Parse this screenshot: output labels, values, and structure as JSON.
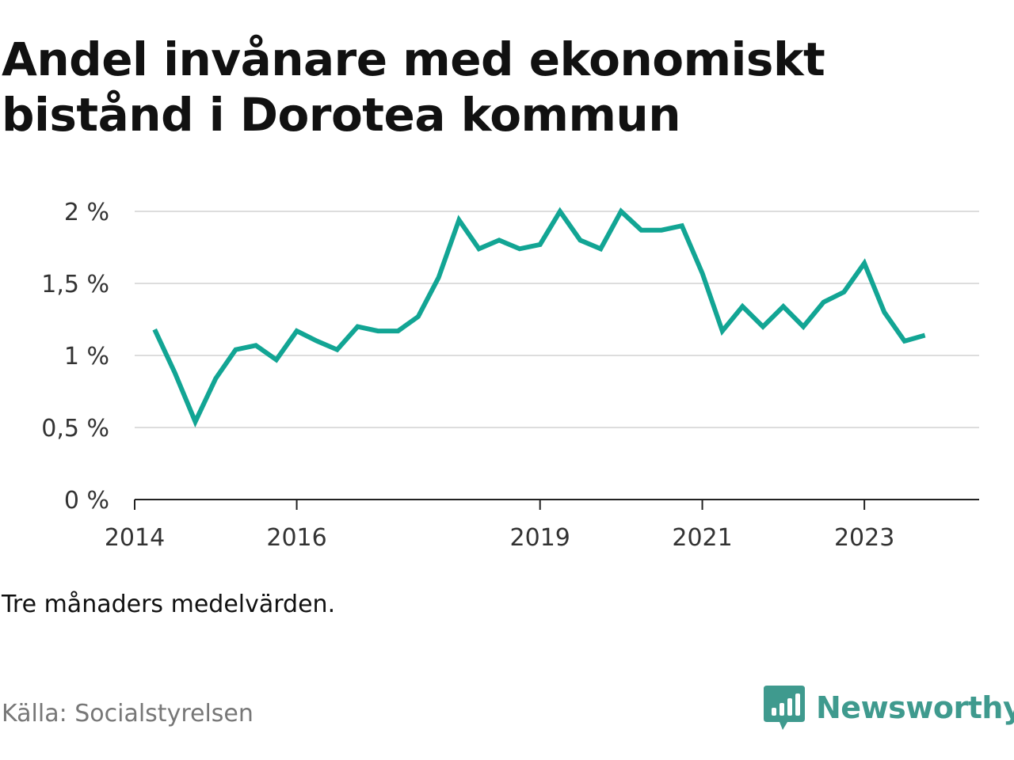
{
  "title": "Andel invånare med ekonomiskt bistånd i Dorotea kommun",
  "note": "Tre månaders medelvärden.",
  "source": "Källa: Socialstyrelsen",
  "brand": {
    "name": "Newsworthy",
    "color": "#3f9a8e"
  },
  "colors": {
    "line": "#12a594",
    "grid": "#dddddd",
    "axis": "#222222",
    "text": "#333333"
  },
  "chart_data": {
    "type": "line",
    "title": "Andel invånare med ekonomiskt bistånd i Dorotea kommun",
    "xlabel": "",
    "ylabel": "",
    "ylim": [
      0,
      2
    ],
    "xlim": [
      "2014-01-01",
      "2024-06-01"
    ],
    "grid": true,
    "y_ticks": [
      0,
      0.5,
      1,
      1.5,
      2
    ],
    "y_tick_labels": [
      "0 %",
      "0,5 %",
      "1 %",
      "1,5 %",
      "2 %"
    ],
    "x_ticks": [
      "2014-01-01",
      "2016-01-01",
      "2019-01-01",
      "2021-01-01",
      "2023-01-01"
    ],
    "x_tick_labels": [
      "2014",
      "2016",
      "2019",
      "2021",
      "2023"
    ],
    "series": [
      {
        "x": [
          "2014-04-01",
          "2014-07-01",
          "2014-10-01",
          "2015-01-01",
          "2015-04-01",
          "2015-07-01",
          "2015-10-01",
          "2016-01-01",
          "2016-04-01",
          "2016-07-01",
          "2016-10-01",
          "2017-01-01",
          "2017-04-01",
          "2017-07-01",
          "2017-10-01",
          "2018-01-01",
          "2018-04-01",
          "2018-07-01",
          "2018-10-01",
          "2019-01-01",
          "2019-04-01",
          "2019-07-01",
          "2019-10-01",
          "2020-01-01",
          "2020-04-01",
          "2020-07-01",
          "2020-10-01",
          "2021-01-01",
          "2021-04-01",
          "2021-07-01",
          "2021-10-01",
          "2022-01-01",
          "2022-04-01",
          "2022-07-01",
          "2022-10-01",
          "2023-01-01",
          "2023-04-01",
          "2023-07-01",
          "2023-10-01"
        ],
        "values": [
          1.18,
          0.88,
          0.54,
          0.84,
          1.04,
          1.07,
          0.97,
          1.17,
          1.1,
          1.04,
          1.2,
          1.17,
          1.17,
          1.27,
          1.54,
          1.94,
          1.74,
          1.8,
          1.74,
          1.77,
          2.0,
          1.8,
          1.74,
          2.0,
          1.87,
          1.87,
          1.9,
          1.57,
          1.17,
          1.34,
          1.2,
          1.34,
          1.2,
          1.37,
          1.44,
          1.64,
          1.3,
          1.1,
          1.14
        ]
      }
    ]
  }
}
